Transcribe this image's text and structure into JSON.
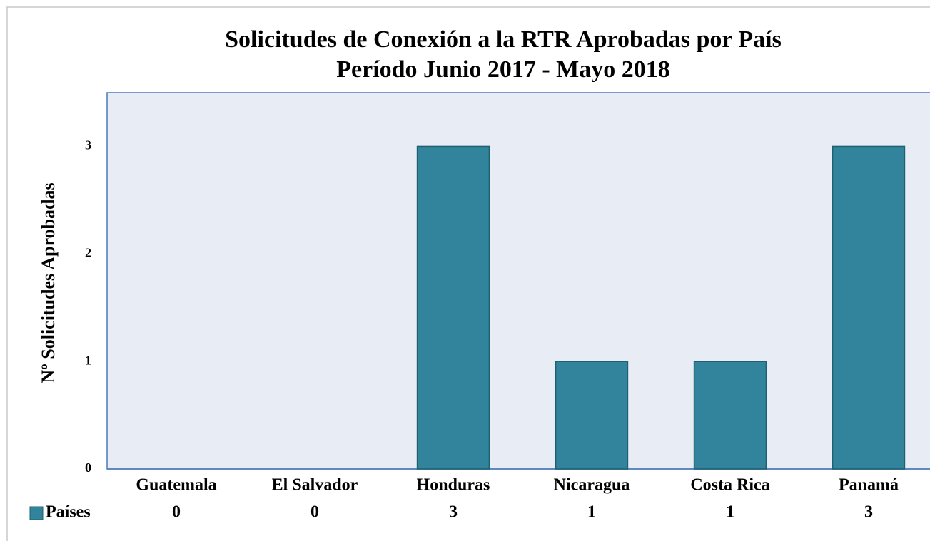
{
  "chart_data": {
    "type": "bar",
    "title": "Solicitudes de Conexión a la RTR Aprobadas por País",
    "subtitle": "Período Junio 2017 - Mayo 2018",
    "y_label": "Nº Solicitudes Aprobadas",
    "categories": [
      "Guatemala",
      "El Salvador",
      "Honduras",
      "Nicaragua",
      "Costa Rica",
      "Panamá"
    ],
    "series": [
      {
        "name": "Países",
        "color": "#31849b",
        "values": [
          0,
          0,
          3,
          1,
          1,
          3
        ]
      }
    ],
    "ylim": [
      0,
      3.5
    ],
    "yticks": [
      0,
      1,
      2,
      3
    ],
    "grid": false
  }
}
